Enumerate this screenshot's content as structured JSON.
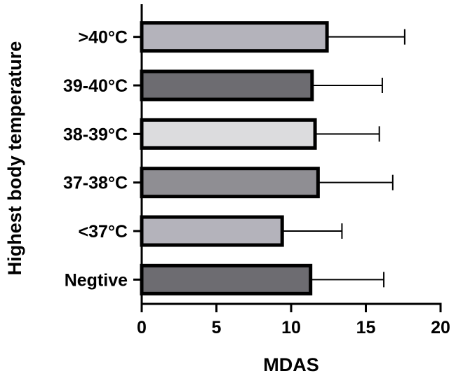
{
  "chart_data": {
    "type": "bar",
    "orientation": "horizontal",
    "title": "",
    "xlabel": "MDAS",
    "ylabel": "Highest body temperature",
    "xlim": [
      0,
      20
    ],
    "x_ticks": [
      0,
      5,
      10,
      15,
      20
    ],
    "grid": false,
    "error_bars": "positive-only",
    "categories": [
      ">40°C",
      "39-40°C",
      "38-39°C",
      "37-38°C",
      "<37°C",
      "Negtive"
    ],
    "values": [
      12.4,
      11.4,
      11.6,
      11.8,
      9.4,
      11.3
    ],
    "error_upper": [
      17.6,
      16.1,
      15.9,
      16.8,
      13.4,
      16.2
    ],
    "bar_colors": [
      "#b4b3bb",
      "#6d6c71",
      "#dcdcde",
      "#8f8e93",
      "#b4b3bb",
      "#6d6c71"
    ]
  }
}
